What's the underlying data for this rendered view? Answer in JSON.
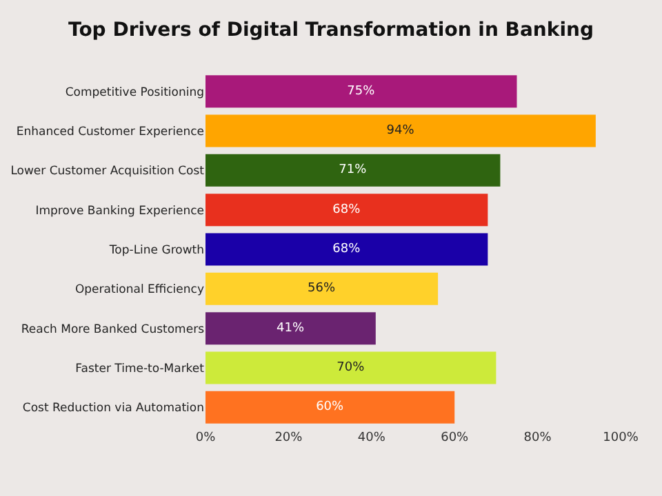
{
  "chart_data": {
    "type": "bar",
    "orientation": "horizontal",
    "title": "Top Drivers of Digital Transformation in Banking",
    "categories": [
      "Competitive Positioning",
      "Enhanced Customer Experience",
      "Lower Customer Acquisition Cost",
      "Improve Banking Experience",
      "Top-Line Growth",
      "Operational Efficiency",
      "Reach More Banked Customers",
      "Faster Time-to-Market",
      "Cost Reduction via Automation"
    ],
    "values": [
      75,
      94,
      71,
      68,
      68,
      56,
      41,
      70,
      60
    ],
    "value_labels": [
      "75%",
      "94%",
      "71%",
      "68%",
      "68%",
      "56%",
      "41%",
      "70%",
      "60%"
    ],
    "colors": [
      "#a8197a",
      "#ffa500",
      "#2f6410",
      "#e8301e",
      "#1a00a8",
      "#ffd12a",
      "#6a2370",
      "#cdea3a",
      "#ff7220"
    ],
    "xlim": [
      0,
      100
    ],
    "xticks": [
      {
        "value": 0,
        "label": "0%"
      },
      {
        "value": 20,
        "label": "20%"
      },
      {
        "value": 40,
        "label": "40%"
      },
      {
        "value": 60,
        "label": "60%"
      },
      {
        "value": 80,
        "label": "80%"
      },
      {
        "value": 100,
        "label": "100%"
      }
    ],
    "grid": false,
    "legend": false
  }
}
